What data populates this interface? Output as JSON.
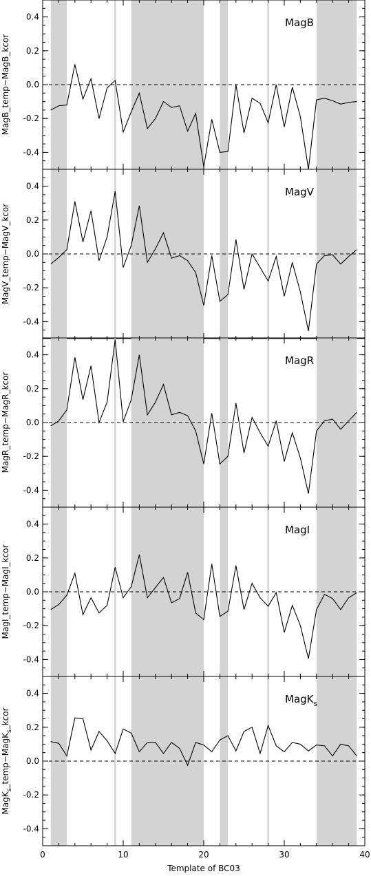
{
  "chart_data": {
    "type": "line",
    "xlabel": "Template of BC03",
    "xlim": [
      0,
      40
    ],
    "x_ticks": [
      0,
      10,
      20,
      30,
      40
    ],
    "ylim": [
      -0.5,
      0.5
    ],
    "y_ticks": [
      -0.4,
      -0.2,
      0.0,
      0.2,
      0.4
    ],
    "y_tick_labels": [
      "-0.4",
      "-0.2",
      "0.0",
      "0.2",
      "0.4"
    ],
    "reference_line_y": 0.0,
    "shaded_x_ranges": [
      [
        1,
        3
      ],
      [
        11,
        20
      ],
      [
        22,
        23
      ],
      [
        34,
        39
      ]
    ],
    "light_vertical_lines_x": [
      9,
      28
    ],
    "x": [
      1,
      2,
      3,
      4,
      5,
      6,
      7,
      8,
      9,
      10,
      11,
      12,
      13,
      14,
      15,
      16,
      17,
      18,
      19,
      20,
      21,
      22,
      23,
      24,
      25,
      26,
      27,
      28,
      29,
      30,
      31,
      32,
      33,
      34,
      35,
      36,
      37,
      38,
      39
    ],
    "panels": [
      {
        "label": "MagB",
        "ylabel": "MagB_temp−MagB_kcor",
        "values": [
          -0.15,
          -0.125,
          -0.12,
          0.12,
          -0.085,
          0.035,
          -0.2,
          -0.02,
          0.025,
          -0.28,
          -0.16,
          -0.05,
          -0.26,
          -0.2,
          -0.1,
          -0.135,
          -0.125,
          -0.275,
          -0.17,
          -0.485,
          -0.205,
          -0.4,
          -0.395,
          0.0,
          -0.285,
          -0.08,
          -0.11,
          -0.225,
          0.0,
          -0.25,
          -0.015,
          -0.19,
          -0.5,
          -0.09,
          -0.08,
          -0.095,
          -0.115,
          -0.105,
          -0.1
        ]
      },
      {
        "label": "MagV",
        "ylabel": "MagV_temp−MagV_kcor",
        "values": [
          -0.06,
          -0.02,
          0.025,
          0.31,
          0.07,
          0.255,
          -0.04,
          0.1,
          0.37,
          -0.08,
          0.05,
          0.285,
          -0.05,
          0.03,
          0.125,
          -0.025,
          -0.01,
          -0.04,
          -0.11,
          -0.305,
          -0.01,
          -0.28,
          -0.24,
          0.085,
          -0.21,
          0.0,
          -0.08,
          -0.16,
          -0.015,
          -0.25,
          -0.05,
          -0.225,
          -0.455,
          -0.06,
          -0.01,
          -0.005,
          -0.06,
          -0.015,
          0.025
        ]
      },
      {
        "label": "MagR",
        "ylabel": "MagR_temp−MagR_kcor",
        "values": [
          -0.02,
          0.01,
          0.075,
          0.385,
          0.135,
          0.335,
          0.0,
          0.12,
          0.49,
          0.005,
          0.135,
          0.4,
          0.045,
          0.12,
          0.225,
          0.045,
          0.06,
          0.04,
          -0.05,
          -0.245,
          0.055,
          -0.245,
          -0.2,
          0.115,
          -0.18,
          0.03,
          -0.06,
          -0.14,
          0.01,
          -0.23,
          -0.06,
          -0.21,
          -0.42,
          -0.05,
          0.01,
          0.02,
          -0.04,
          0.01,
          0.06
        ]
      },
      {
        "label": "MagI",
        "ylabel": "MagI_temp−MagI_kcor",
        "values": [
          -0.105,
          -0.075,
          -0.02,
          0.11,
          -0.135,
          -0.035,
          -0.125,
          -0.08,
          0.145,
          -0.035,
          0.03,
          0.22,
          -0.035,
          0.025,
          0.085,
          -0.065,
          -0.04,
          0.115,
          -0.125,
          -0.165,
          0.165,
          -0.145,
          -0.115,
          0.155,
          -0.105,
          0.05,
          -0.035,
          -0.085,
          -0.005,
          -0.24,
          -0.08,
          -0.2,
          -0.395,
          -0.105,
          -0.015,
          -0.04,
          -0.105,
          -0.035,
          -0.005
        ]
      },
      {
        "label": "MagKs",
        "label_main": "MagK",
        "label_sub": "s",
        "ylabel": "MagKs_temp−MagKs_kcor",
        "ylabel_parts": [
          "MagK",
          "s",
          "_temp−MagK",
          "s",
          "_kcor"
        ],
        "values": [
          0.115,
          0.105,
          0.03,
          0.255,
          0.25,
          0.065,
          0.175,
          0.12,
          0.045,
          0.19,
          0.165,
          0.055,
          0.11,
          0.11,
          0.045,
          0.11,
          0.075,
          -0.025,
          0.11,
          0.095,
          0.055,
          0.125,
          0.15,
          0.06,
          0.175,
          0.2,
          0.045,
          0.21,
          0.09,
          0.055,
          0.11,
          0.1,
          0.06,
          0.095,
          0.09,
          0.03,
          0.1,
          0.09,
          0.03
        ]
      }
    ]
  }
}
